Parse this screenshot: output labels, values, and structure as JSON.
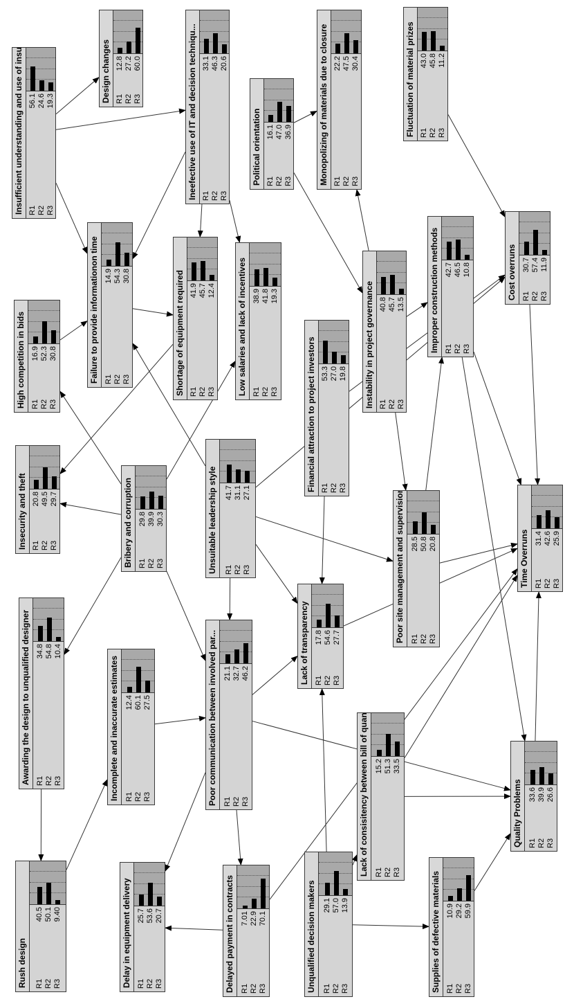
{
  "states": [
    "R1",
    "R2",
    "R3"
  ],
  "colors": {
    "node_bg": "#d4d4d4",
    "chart_bg": "#a9a9a9",
    "bar": "#000000",
    "edge": "#333333"
  },
  "nodes": [
    {
      "title": "Insufficient understanding and use of insu...",
      "values": [
        "56.1",
        "24.6",
        "19.3"
      ]
    },
    {
      "title": "Design changes",
      "values": [
        "12.8",
        "27.2",
        "60.0"
      ]
    },
    {
      "title": "Ineefective use of IT and decision techniqu...",
      "values": [
        "33.1",
        "46.3",
        "20.6"
      ]
    },
    {
      "title": "Monopolizing of materials due to closure",
      "values": [
        "22.2",
        "47.5",
        "30.4"
      ]
    },
    {
      "title": "Fluctuation of material prizes",
      "values": [
        "43.0",
        "45.8",
        "11.2"
      ]
    },
    {
      "title": "Political orientation",
      "values": [
        "16.1",
        "47.0",
        "36.9"
      ]
    },
    {
      "title": "Failure to provide informationon time",
      "values": [
        "14.9",
        "54.3",
        "30.8"
      ]
    },
    {
      "title": "Shortage of equipment required",
      "values": [
        "41.9",
        "45.7",
        "12.4"
      ]
    },
    {
      "title": "Low salaries and lack of incentives",
      "values": [
        "38.9",
        "41.8",
        "19.3"
      ]
    },
    {
      "title": "High competition in bids",
      "values": [
        "16.9",
        "52.3",
        "30.8"
      ]
    },
    {
      "title": "Financial attraction to project investors",
      "values": [
        "53.3",
        "27.0",
        "19.8"
      ]
    },
    {
      "title": "Instability in project governance",
      "values": [
        "40.8",
        "45.7",
        "13.5"
      ]
    },
    {
      "title": "Improper construction methods",
      "values": [
        "42.7",
        "46.5",
        "10.8"
      ]
    },
    {
      "title": "Cost overruns",
      "values": [
        "30.7",
        "57.4",
        "11.9"
      ]
    },
    {
      "title": "Insecurity and theft",
      "values": [
        "20.8",
        "49.5",
        "29.7"
      ]
    },
    {
      "title": "Bribery and corruption",
      "values": [
        "29.8",
        "39.9",
        "30.3"
      ]
    },
    {
      "title": "Unsuitable leadership style",
      "values": [
        "41.7",
        "31.1",
        "27.1"
      ]
    },
    {
      "title": "Poor site management and supervision",
      "values": [
        "28.5",
        "50.8",
        "20.8"
      ]
    },
    {
      "title": "Time Overruns",
      "values": [
        "31.4",
        "42.6",
        "25.9"
      ]
    },
    {
      "title": "Awarding the design to unqualified designer",
      "values": [
        "34.8",
        "54.8",
        "10.4"
      ]
    },
    {
      "title": "Incomplete and inaccurate estimates",
      "values": [
        "12.4",
        "60.1",
        "27.5"
      ]
    },
    {
      "title": "Poor communication between involved par...",
      "values": [
        "21.1",
        "32.7",
        "46.2"
      ]
    },
    {
      "title": "Lack of transparency",
      "values": [
        "17.8",
        "54.6",
        "27.7"
      ]
    },
    {
      "title": "Lack of consisitency between bill of quanti...",
      "values": [
        "15.2",
        "51.3",
        "33.5"
      ]
    },
    {
      "title": "Quality Problems",
      "values": [
        "33.6",
        "39.9",
        "26.6"
      ]
    },
    {
      "title": "Rush design",
      "values": [
        "40.5",
        "50.1",
        "9.40"
      ]
    },
    {
      "title": "Delay in equipment delivery",
      "values": [
        "25.7",
        "53.6",
        "20.7"
      ]
    },
    {
      "title": "Delayed payment in contracts",
      "values": [
        "7.01",
        "22.9",
        "70.1"
      ]
    },
    {
      "title": "Unqualified decision makers",
      "values": [
        "29.1",
        "57.0",
        "13.9"
      ]
    },
    {
      "title": "Supplies of defective materials",
      "values": [
        "10.9",
        "29.2",
        "59.9"
      ]
    }
  ],
  "edges": [
    [
      0,
      1
    ],
    [
      0,
      2
    ],
    [
      0,
      6
    ],
    [
      2,
      6
    ],
    [
      2,
      7
    ],
    [
      2,
      8
    ],
    [
      6,
      7
    ],
    [
      9,
      6
    ],
    [
      5,
      3
    ],
    [
      5,
      11
    ],
    [
      11,
      3
    ],
    [
      11,
      12
    ],
    [
      4,
      13
    ],
    [
      13,
      18
    ],
    [
      12,
      18
    ],
    [
      12,
      24
    ],
    [
      11,
      17
    ],
    [
      17,
      12
    ],
    [
      17,
      18
    ],
    [
      15,
      9
    ],
    [
      15,
      14
    ],
    [
      15,
      8
    ],
    [
      15,
      19
    ],
    [
      15,
      21
    ],
    [
      7,
      14
    ],
    [
      16,
      6
    ],
    [
      16,
      21
    ],
    [
      16,
      22
    ],
    [
      16,
      17
    ],
    [
      16,
      13
    ],
    [
      10,
      22
    ],
    [
      10,
      13
    ],
    [
      22,
      18
    ],
    [
      21,
      22
    ],
    [
      21,
      24
    ],
    [
      21,
      27
    ],
    [
      21,
      26
    ],
    [
      20,
      21
    ],
    [
      19,
      25
    ],
    [
      25,
      20
    ],
    [
      27,
      26
    ],
    [
      27,
      18
    ],
    [
      28,
      22
    ],
    [
      28,
      23
    ],
    [
      28,
      29
    ],
    [
      23,
      18
    ],
    [
      23,
      24
    ],
    [
      29,
      24
    ],
    [
      24,
      18
    ]
  ]
}
